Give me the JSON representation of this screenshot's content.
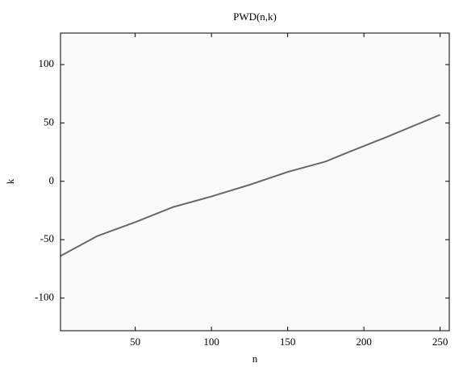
{
  "chart_data": {
    "type": "line",
    "title": "PWD(n,k)",
    "x_label": "n",
    "y_label": "k",
    "x": [
      1,
      25,
      50,
      75,
      100,
      125,
      150,
      175,
      190,
      215,
      250
    ],
    "series": [
      {
        "name": null,
        "color": "#444444",
        "values": [
          -64,
          -47,
          -35,
          -22,
          -13,
          -3,
          8,
          17,
          25,
          38,
          57
        ]
      }
    ],
    "xlim": [
      1,
      256
    ],
    "xticks": [
      50,
      100,
      150,
      200,
      250
    ],
    "ylim": [
      -128,
      127
    ],
    "yticks": [
      -100,
      -50,
      0,
      50,
      100
    ],
    "grid": false
  }
}
